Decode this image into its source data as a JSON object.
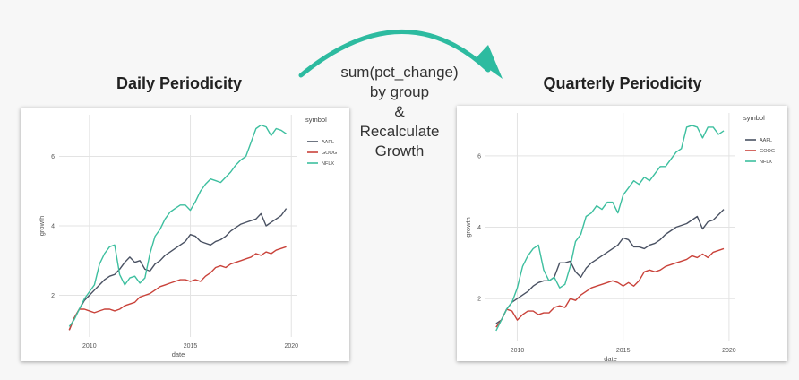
{
  "headings": {
    "left": "Daily Periodicity",
    "right": "Quarterly Periodicity"
  },
  "transform_text": [
    "sum(pct_change)",
    "by group",
    "&",
    "Recalculate",
    "Growth"
  ],
  "colors": {
    "AAPL": "#4a5263",
    "GOOG": "#c9423a",
    "NFLX": "#3dbf9f",
    "arrow": "#2dbba0"
  },
  "chart_data": [
    {
      "type": "line",
      "title": "",
      "xlabel": "date",
      "ylabel": "growth",
      "xlim": [
        2008.5,
        2020.3
      ],
      "ylim": [
        0.8,
        7.2
      ],
      "xticks": [
        2010,
        2015,
        2020
      ],
      "yticks": [
        2,
        4,
        6
      ],
      "grid": true,
      "legend": {
        "title": "symbol",
        "placement": "top-right outside"
      },
      "series": [
        {
          "name": "AAPL",
          "x": [
            2009.0,
            2009.25,
            2009.5,
            2009.75,
            2010.0,
            2010.25,
            2010.5,
            2010.75,
            2011.0,
            2011.25,
            2011.5,
            2011.75,
            2012.0,
            2012.25,
            2012.5,
            2012.75,
            2013.0,
            2013.25,
            2013.5,
            2013.75,
            2014.0,
            2014.25,
            2014.5,
            2014.75,
            2015.0,
            2015.25,
            2015.5,
            2015.75,
            2016.0,
            2016.25,
            2016.5,
            2016.75,
            2017.0,
            2017.25,
            2017.5,
            2017.75,
            2018.0,
            2018.25,
            2018.5,
            2018.75,
            2019.0,
            2019.25,
            2019.5,
            2019.75
          ],
          "y": [
            1.0,
            1.35,
            1.6,
            1.85,
            2.0,
            2.15,
            2.3,
            2.45,
            2.55,
            2.6,
            2.75,
            2.95,
            3.1,
            2.95,
            3.0,
            2.75,
            2.7,
            2.9,
            3.0,
            3.15,
            3.25,
            3.35,
            3.45,
            3.55,
            3.75,
            3.7,
            3.55,
            3.5,
            3.45,
            3.55,
            3.6,
            3.7,
            3.85,
            3.95,
            4.05,
            4.1,
            4.15,
            4.2,
            4.35,
            4.0,
            4.1,
            4.2,
            4.3,
            4.5
          ]
        },
        {
          "name": "GOOG",
          "x": [
            2009.0,
            2009.25,
            2009.5,
            2009.75,
            2010.0,
            2010.25,
            2010.5,
            2010.75,
            2011.0,
            2011.25,
            2011.5,
            2011.75,
            2012.0,
            2012.25,
            2012.5,
            2012.75,
            2013.0,
            2013.25,
            2013.5,
            2013.75,
            2014.0,
            2014.25,
            2014.5,
            2014.75,
            2015.0,
            2015.25,
            2015.5,
            2015.75,
            2016.0,
            2016.25,
            2016.5,
            2016.75,
            2017.0,
            2017.25,
            2017.5,
            2017.75,
            2018.0,
            2018.25,
            2018.5,
            2018.75,
            2019.0,
            2019.25,
            2019.5,
            2019.75
          ],
          "y": [
            1.0,
            1.35,
            1.6,
            1.6,
            1.55,
            1.5,
            1.55,
            1.6,
            1.6,
            1.55,
            1.6,
            1.7,
            1.75,
            1.8,
            1.95,
            2.0,
            2.05,
            2.15,
            2.25,
            2.3,
            2.35,
            2.4,
            2.45,
            2.45,
            2.4,
            2.45,
            2.4,
            2.55,
            2.65,
            2.8,
            2.85,
            2.8,
            2.9,
            2.95,
            3.0,
            3.05,
            3.1,
            3.2,
            3.15,
            3.25,
            3.2,
            3.3,
            3.35,
            3.4
          ]
        },
        {
          "name": "NFLX",
          "x": [
            2009.0,
            2009.25,
            2009.5,
            2009.75,
            2010.0,
            2010.25,
            2010.5,
            2010.75,
            2011.0,
            2011.25,
            2011.5,
            2011.75,
            2012.0,
            2012.25,
            2012.5,
            2012.75,
            2013.0,
            2013.25,
            2013.5,
            2013.75,
            2014.0,
            2014.25,
            2014.5,
            2014.75,
            2015.0,
            2015.25,
            2015.5,
            2015.75,
            2016.0,
            2016.25,
            2016.5,
            2016.75,
            2017.0,
            2017.25,
            2017.5,
            2017.75,
            2018.0,
            2018.25,
            2018.5,
            2018.75,
            2019.0,
            2019.25,
            2019.5,
            2019.75
          ],
          "y": [
            1.1,
            1.3,
            1.6,
            1.9,
            2.1,
            2.3,
            2.9,
            3.2,
            3.4,
            3.45,
            2.6,
            2.3,
            2.5,
            2.55,
            2.35,
            2.5,
            3.2,
            3.7,
            3.9,
            4.2,
            4.4,
            4.5,
            4.6,
            4.6,
            4.45,
            4.7,
            5.0,
            5.2,
            5.35,
            5.3,
            5.25,
            5.4,
            5.55,
            5.75,
            5.9,
            6.0,
            6.4,
            6.8,
            6.9,
            6.85,
            6.6,
            6.8,
            6.75,
            6.65
          ]
        }
      ]
    },
    {
      "type": "line",
      "title": "",
      "xlabel": "date",
      "ylabel": "growth",
      "xlim": [
        2008.5,
        2020.3
      ],
      "ylim": [
        0.8,
        7.2
      ],
      "xticks": [
        2010,
        2015,
        2020
      ],
      "yticks": [
        2,
        4,
        6
      ],
      "grid": true,
      "legend": {
        "title": "symbol",
        "placement": "top-right outside"
      },
      "series": [
        {
          "name": "AAPL",
          "x": [
            2009.0,
            2009.25,
            2009.5,
            2009.75,
            2010.0,
            2010.25,
            2010.5,
            2010.75,
            2011.0,
            2011.25,
            2011.5,
            2011.75,
            2012.0,
            2012.25,
            2012.5,
            2012.75,
            2013.0,
            2013.25,
            2013.5,
            2013.75,
            2014.0,
            2014.25,
            2014.5,
            2014.75,
            2015.0,
            2015.25,
            2015.5,
            2015.75,
            2016.0,
            2016.25,
            2016.5,
            2016.75,
            2017.0,
            2017.25,
            2017.5,
            2017.75,
            2018.0,
            2018.25,
            2018.5,
            2018.75,
            2019.0,
            2019.25,
            2019.5,
            2019.75
          ],
          "y": [
            1.3,
            1.4,
            1.7,
            1.9,
            2.0,
            2.1,
            2.2,
            2.35,
            2.45,
            2.5,
            2.5,
            2.6,
            3.0,
            3.0,
            3.05,
            2.75,
            2.6,
            2.85,
            3.0,
            3.1,
            3.2,
            3.3,
            3.4,
            3.5,
            3.7,
            3.65,
            3.45,
            3.45,
            3.4,
            3.5,
            3.55,
            3.65,
            3.8,
            3.9,
            4.0,
            4.05,
            4.1,
            4.2,
            4.3,
            3.95,
            4.15,
            4.2,
            4.35,
            4.5
          ]
        },
        {
          "name": "GOOG",
          "x": [
            2009.0,
            2009.25,
            2009.5,
            2009.75,
            2010.0,
            2010.25,
            2010.5,
            2010.75,
            2011.0,
            2011.25,
            2011.5,
            2011.75,
            2012.0,
            2012.25,
            2012.5,
            2012.75,
            2013.0,
            2013.25,
            2013.5,
            2013.75,
            2014.0,
            2014.25,
            2014.5,
            2014.75,
            2015.0,
            2015.25,
            2015.5,
            2015.75,
            2016.0,
            2016.25,
            2016.5,
            2016.75,
            2017.0,
            2017.25,
            2017.5,
            2017.75,
            2018.0,
            2018.25,
            2018.5,
            2018.75,
            2019.0,
            2019.25,
            2019.5,
            2019.75
          ],
          "y": [
            1.2,
            1.4,
            1.7,
            1.65,
            1.4,
            1.55,
            1.65,
            1.65,
            1.55,
            1.6,
            1.6,
            1.75,
            1.8,
            1.75,
            2.0,
            1.95,
            2.1,
            2.2,
            2.3,
            2.35,
            2.4,
            2.45,
            2.5,
            2.45,
            2.35,
            2.45,
            2.35,
            2.5,
            2.75,
            2.8,
            2.75,
            2.8,
            2.9,
            2.95,
            3.0,
            3.05,
            3.1,
            3.2,
            3.15,
            3.25,
            3.15,
            3.3,
            3.35,
            3.4
          ]
        },
        {
          "name": "NFLX",
          "x": [
            2009.0,
            2009.25,
            2009.5,
            2009.75,
            2010.0,
            2010.25,
            2010.5,
            2010.75,
            2011.0,
            2011.25,
            2011.5,
            2011.75,
            2012.0,
            2012.25,
            2012.5,
            2012.75,
            2013.0,
            2013.25,
            2013.5,
            2013.75,
            2014.0,
            2014.25,
            2014.5,
            2014.75,
            2015.0,
            2015.25,
            2015.5,
            2015.75,
            2016.0,
            2016.25,
            2016.5,
            2016.75,
            2017.0,
            2017.25,
            2017.5,
            2017.75,
            2018.0,
            2018.25,
            2018.5,
            2018.75,
            2019.0,
            2019.25,
            2019.5,
            2019.75
          ],
          "y": [
            1.1,
            1.4,
            1.7,
            1.9,
            2.3,
            2.9,
            3.2,
            3.4,
            3.5,
            2.8,
            2.5,
            2.6,
            2.3,
            2.4,
            2.9,
            3.6,
            3.8,
            4.3,
            4.4,
            4.6,
            4.5,
            4.7,
            4.7,
            4.4,
            4.9,
            5.1,
            5.3,
            5.2,
            5.4,
            5.3,
            5.5,
            5.7,
            5.7,
            5.9,
            6.1,
            6.2,
            6.8,
            6.85,
            6.8,
            6.5,
            6.8,
            6.8,
            6.6,
            6.7
          ]
        }
      ]
    }
  ]
}
